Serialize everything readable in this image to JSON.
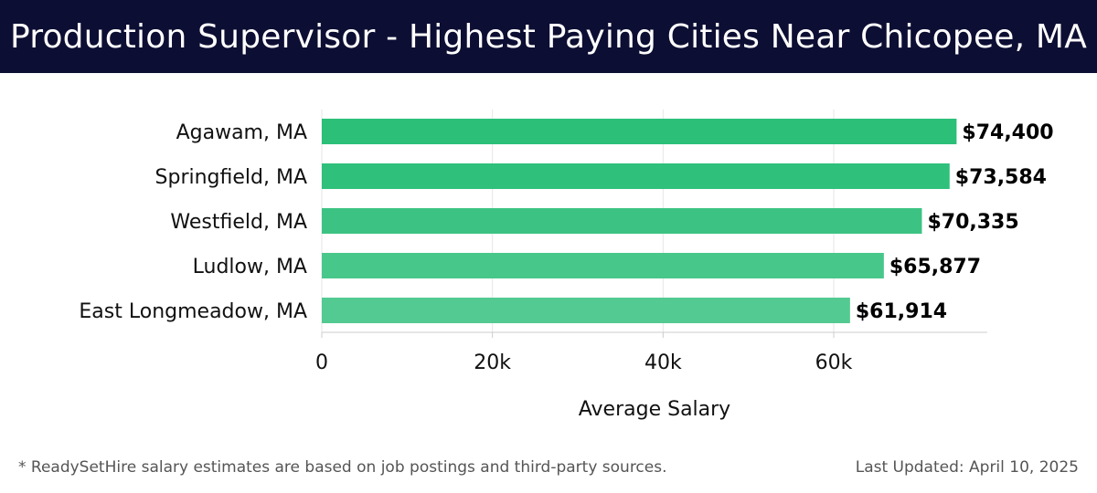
{
  "header": {
    "title": "Production Supervisor - Highest Paying Cities Near Chicopee, MA"
  },
  "chart_data": {
    "type": "bar",
    "orientation": "horizontal",
    "categories": [
      "Agawam, MA",
      "Springfield, MA",
      "Westfield, MA",
      "Ludlow, MA",
      "East Longmeadow, MA"
    ],
    "values": [
      74400,
      73584,
      70335,
      65877,
      61914
    ],
    "value_labels": [
      "$74,400",
      "$73,584",
      "$70,335",
      "$65,877",
      "$61,914"
    ],
    "bar_colors": [
      "#2bbf78",
      "#2fc07b",
      "#3cc383",
      "#48c78b",
      "#53ca91"
    ],
    "xlabel": "Average Salary",
    "ylabel": "",
    "xlim": [
      0,
      78000
    ],
    "xticks": [
      0,
      20000,
      40000,
      60000
    ],
    "xtick_labels": [
      "0",
      "20k",
      "40k",
      "60k"
    ],
    "grid": "vertical"
  },
  "footer": {
    "note": "* ReadySetHire salary estimates are based on job postings and third-party sources.",
    "updated": "Last Updated: April 10, 2025"
  },
  "colors": {
    "header_bg": "#0d0e33",
    "grid": "#e6e6e6",
    "axis": "#cccccc"
  }
}
